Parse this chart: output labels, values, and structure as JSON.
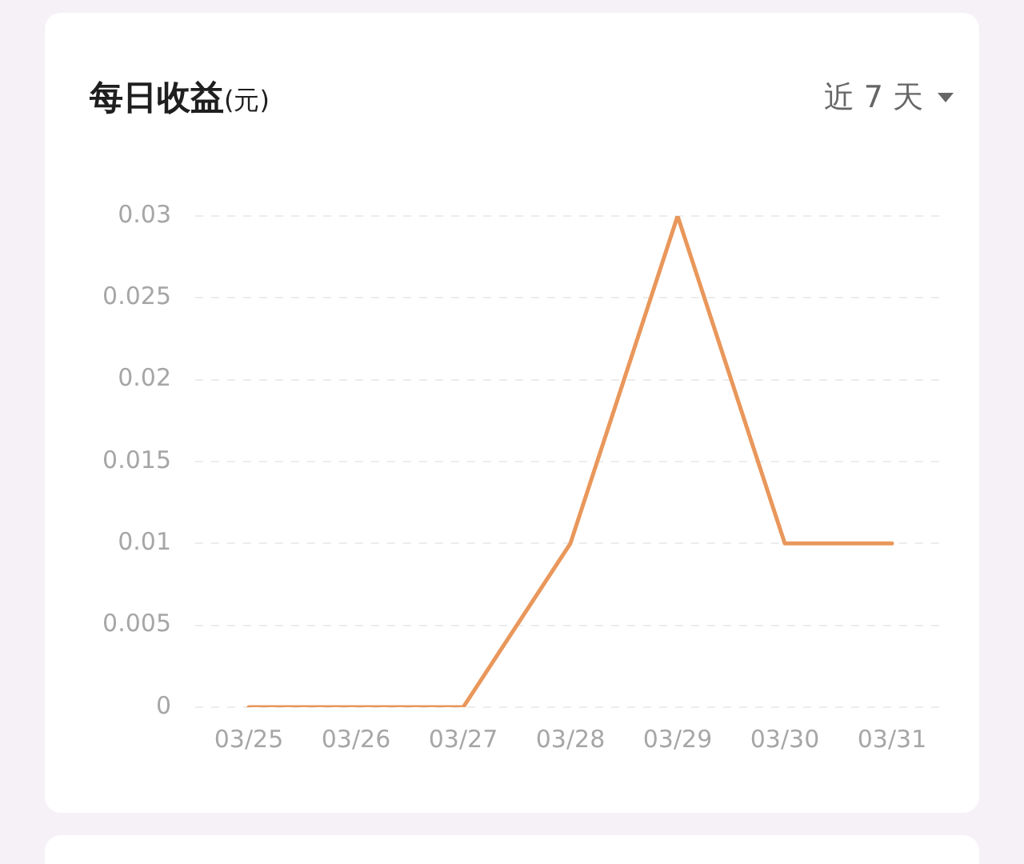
{
  "chart_data": {
    "type": "line",
    "title": "每日收益(元)",
    "subtitle": "近 7 天",
    "categories": [
      "03/25",
      "03/26",
      "03/27",
      "03/28",
      "03/29",
      "03/30",
      "03/31"
    ],
    "series": [
      {
        "color": "#e9975b",
        "values": [
          0,
          0,
          0,
          0.01,
          0.03,
          0.01,
          0.01
        ]
      }
    ],
    "ylim": [
      0,
      0.03
    ],
    "yticks": [
      0,
      0.005,
      0.01,
      0.015,
      0.02,
      0.025,
      0.03
    ],
    "grid": "y",
    "legend": false,
    "marker": "none",
    "line_style": "solid"
  }
}
